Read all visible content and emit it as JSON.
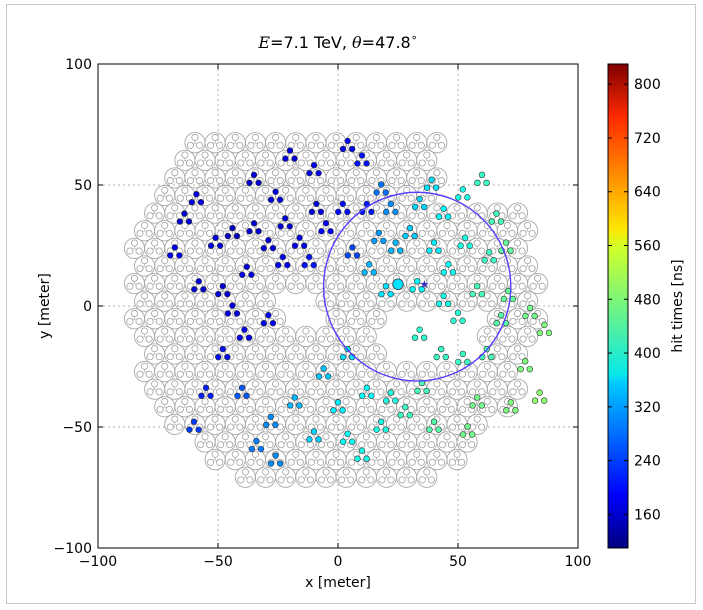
{
  "chart_data": {
    "type": "scatter",
    "title": "E=7.1 TeV, θ=47.8°",
    "title_parts": {
      "e_sym": "E",
      "e_val": "=7.1 TeV, ",
      "theta_sym": "θ",
      "theta_val": "=47.8",
      "deg": "∘"
    },
    "xlabel": "x [meter]",
    "ylabel": "y [meter]",
    "xlim": [
      -100,
      100
    ],
    "ylim": [
      -100,
      100
    ],
    "xticks": [
      "−100",
      "−50",
      "0",
      "50",
      "100"
    ],
    "yticks": [
      "−100",
      "−50",
      "0",
      "50",
      "100"
    ],
    "xtick_values": [
      -100,
      -50,
      0,
      50,
      100
    ],
    "ytick_values": [
      -100,
      -50,
      0,
      50,
      100
    ],
    "grid": true,
    "colorbar": {
      "label": "hit times [ns]",
      "range": [
        110,
        830
      ],
      "ticks": [
        160,
        240,
        320,
        400,
        480,
        560,
        640,
        720,
        800
      ],
      "colormap": "jet"
    },
    "circle": {
      "center": [
        33,
        8
      ],
      "radius": 39,
      "color": "#5540ff"
    },
    "core": {
      "x": 25,
      "y": 9,
      "time": 360,
      "marker": "circle"
    },
    "true_core": {
      "x": 36,
      "y": 9,
      "marker": "star",
      "color": "#3030c0"
    },
    "stations_hit": [
      {
        "x": -59,
        "y": 44,
        "time": 185
      },
      {
        "x": -64,
        "y": 36,
        "time": 170
      },
      {
        "x": -68,
        "y": 22,
        "time": 190
      },
      {
        "x": -51,
        "y": 26,
        "time": 175
      },
      {
        "x": -44,
        "y": 30,
        "time": 160
      },
      {
        "x": -38,
        "y": 14,
        "time": 180
      },
      {
        "x": -35,
        "y": 32,
        "time": 165
      },
      {
        "x": -29,
        "y": 25,
        "time": 175
      },
      {
        "x": -22,
        "y": 34,
        "time": 170
      },
      {
        "x": -23,
        "y": 18,
        "time": 190
      },
      {
        "x": -16,
        "y": 26,
        "time": 185
      },
      {
        "x": -9,
        "y": 40,
        "time": 180
      },
      {
        "x": -20,
        "y": 62,
        "time": 175
      },
      {
        "x": -10,
        "y": 56,
        "time": 190
      },
      {
        "x": 4,
        "y": 66,
        "time": 200
      },
      {
        "x": 10,
        "y": 60,
        "time": 210
      },
      {
        "x": 2,
        "y": 40,
        "time": 205
      },
      {
        "x": 12,
        "y": 40,
        "time": 215
      },
      {
        "x": -12,
        "y": 18,
        "time": 215
      },
      {
        "x": -5,
        "y": 32,
        "time": 200
      },
      {
        "x": 6,
        "y": 22,
        "time": 250
      },
      {
        "x": 18,
        "y": 48,
        "time": 280
      },
      {
        "x": 22,
        "y": 40,
        "time": 300
      },
      {
        "x": 17,
        "y": 28,
        "time": 310
      },
      {
        "x": 13,
        "y": 15,
        "time": 330
      },
      {
        "x": 24,
        "y": 24,
        "time": 330
      },
      {
        "x": 30,
        "y": 30,
        "time": 345
      },
      {
        "x": 34,
        "y": 42,
        "time": 350
      },
      {
        "x": 39,
        "y": 50,
        "time": 360
      },
      {
        "x": 40,
        "y": 24,
        "time": 370
      },
      {
        "x": 44,
        "y": 38,
        "time": 380
      },
      {
        "x": 46,
        "y": 15,
        "time": 385
      },
      {
        "x": 53,
        "y": 26,
        "time": 400
      },
      {
        "x": 52,
        "y": 46,
        "time": 395
      },
      {
        "x": 60,
        "y": 52,
        "time": 420
      },
      {
        "x": 66,
        "y": 36,
        "time": 430
      },
      {
        "x": 63,
        "y": 20,
        "time": 420
      },
      {
        "x": 58,
        "y": 6,
        "time": 430
      },
      {
        "x": 70,
        "y": 24,
        "time": 450
      },
      {
        "x": 68,
        "y": -6,
        "time": 440
      },
      {
        "x": 80,
        "y": -3,
        "time": 460
      },
      {
        "x": 50,
        "y": -5,
        "time": 410
      },
      {
        "x": 33,
        "y": 8,
        "time": 380
      },
      {
        "x": 20,
        "y": 6,
        "time": 360
      },
      {
        "x": 44,
        "y": 2,
        "time": 395
      },
      {
        "x": 34,
        "y": -12,
        "time": 410
      },
      {
        "x": 43,
        "y": -20,
        "time": 420
      },
      {
        "x": 52,
        "y": -22,
        "time": 420
      },
      {
        "x": 62,
        "y": -20,
        "time": 430
      },
      {
        "x": 78,
        "y": -25,
        "time": 470
      },
      {
        "x": 84,
        "y": -38,
        "time": 480
      },
      {
        "x": 72,
        "y": -42,
        "time": 470
      },
      {
        "x": 58,
        "y": -40,
        "time": 460
      },
      {
        "x": 54,
        "y": -52,
        "time": 460
      },
      {
        "x": 40,
        "y": -50,
        "time": 440
      },
      {
        "x": 35,
        "y": -34,
        "time": 430
      },
      {
        "x": 28,
        "y": -44,
        "time": 420
      },
      {
        "x": 18,
        "y": -50,
        "time": 400
      },
      {
        "x": 12,
        "y": -36,
        "time": 380
      },
      {
        "x": 22,
        "y": -38,
        "time": 400
      },
      {
        "x": 4,
        "y": -55,
        "time": 385
      },
      {
        "x": 10,
        "y": -62,
        "time": 395
      },
      {
        "x": 0,
        "y": -42,
        "time": 370
      },
      {
        "x": -6,
        "y": -28,
        "time": 340
      },
      {
        "x": -10,
        "y": -54,
        "time": 350
      },
      {
        "x": -18,
        "y": -40,
        "time": 330
      },
      {
        "x": -28,
        "y": -48,
        "time": 300
      },
      {
        "x": -34,
        "y": -58,
        "time": 290
      },
      {
        "x": -26,
        "y": -64,
        "time": 300
      },
      {
        "x": -40,
        "y": -36,
        "time": 260
      },
      {
        "x": -48,
        "y": -20,
        "time": 210
      },
      {
        "x": -55,
        "y": -36,
        "time": 220
      },
      {
        "x": -60,
        "y": -50,
        "time": 240
      },
      {
        "x": -44,
        "y": -2,
        "time": 180
      },
      {
        "x": -48,
        "y": 6,
        "time": 170
      },
      {
        "x": -39,
        "y": -12,
        "time": 190
      },
      {
        "x": -29,
        "y": -6,
        "time": 200
      },
      {
        "x": -58,
        "y": 8,
        "time": 175
      },
      {
        "x": -35,
        "y": 52,
        "time": 170
      },
      {
        "x": -26,
        "y": 45,
        "time": 180
      },
      {
        "x": 71,
        "y": 4,
        "time": 450
      },
      {
        "x": 86,
        "y": -10,
        "time": 470
      },
      {
        "x": 4,
        "y": -20,
        "time": 360
      }
    ]
  }
}
